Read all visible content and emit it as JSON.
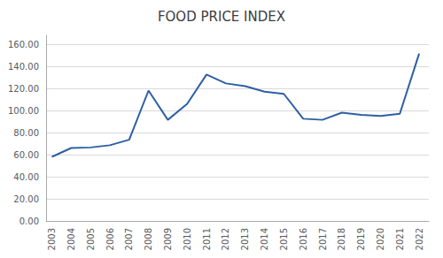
{
  "chart_data": {
    "type": "line",
    "title": "FOOD PRICE INDEX",
    "x": [
      2003,
      2004,
      2005,
      2006,
      2007,
      2008,
      2009,
      2010,
      2011,
      2012,
      2013,
      2014,
      2015,
      2016,
      2017,
      2018,
      2019,
      2020,
      2021,
      2022
    ],
    "values": [
      58.0,
      66.0,
      66.5,
      68.5,
      73.5,
      118.0,
      91.5,
      106.0,
      132.5,
      124.5,
      122.0,
      117.0,
      115.0,
      92.5,
      91.5,
      98.0,
      96.0,
      95.0,
      97.0,
      151.5
    ],
    "color": "#2E5FA3",
    "xlim": [
      2002.7,
      2022.5
    ],
    "xticks": [
      2003,
      2004,
      2005,
      2006,
      2007,
      2008,
      2009,
      2010,
      2011,
      2012,
      2013,
      2014,
      2015,
      2016,
      2017,
      2018,
      2019,
      2020,
      2021,
      2022
    ],
    "ylim": [
      0,
      168
    ],
    "yticks": [
      {
        "value": 0,
        "label": "0.00"
      },
      {
        "value": 20,
        "label": "20.00"
      },
      {
        "value": 40,
        "label": "40.00"
      },
      {
        "value": 60,
        "label": "60.00"
      },
      {
        "value": 80,
        "label": "80.00"
      },
      {
        "value": 100,
        "label": "100.00"
      },
      {
        "value": 120,
        "label": "120.00"
      },
      {
        "value": 140,
        "label": "140.00"
      },
      {
        "value": 160,
        "label": "160.00"
      }
    ],
    "grid": true
  }
}
